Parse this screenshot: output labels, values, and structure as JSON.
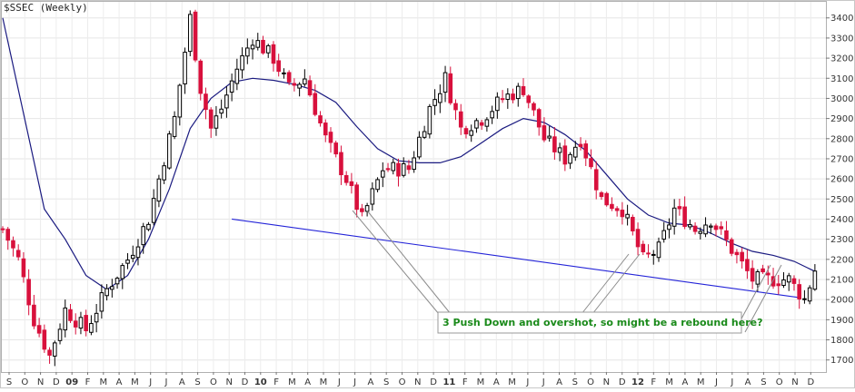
{
  "chart_data": {
    "type": "candlestick",
    "title": "$SSEC (Weekly)",
    "ylim": [
      1640,
      3480
    ],
    "y_ticks": [
      1700,
      1800,
      1900,
      2000,
      2100,
      2200,
      2300,
      2400,
      2500,
      2600,
      2700,
      2800,
      2900,
      3000,
      3100,
      3200,
      3300,
      3400
    ],
    "x_month_labels": [
      "S",
      "O",
      "N",
      "D",
      "09",
      "F",
      "M",
      "A",
      "M",
      "J",
      "J",
      "A",
      "S",
      "O",
      "N",
      "D",
      "10",
      "F",
      "M",
      "A",
      "M",
      "J",
      "J",
      "A",
      "S",
      "O",
      "N",
      "D",
      "11",
      "F",
      "M",
      "A",
      "M",
      "J",
      "J",
      "A",
      "S",
      "O",
      "N",
      "D",
      "12",
      "F",
      "M",
      "A",
      "M",
      "J",
      "J",
      "A",
      "S",
      "O",
      "N",
      "D"
    ],
    "grid": true,
    "up_color": "#000000",
    "down_color": "#d8103c",
    "ma_color": "#1a1a80",
    "trendline_color": "#2424d8",
    "weekly_close_anchors": [
      [
        0,
        2350
      ],
      [
        3,
        2200
      ],
      [
        6,
        1900
      ],
      [
        9,
        1720
      ],
      [
        12,
        1950
      ],
      [
        16,
        1850
      ],
      [
        20,
        2050
      ],
      [
        24,
        2200
      ],
      [
        28,
        2400
      ],
      [
        33,
        2900
      ],
      [
        36,
        3400
      ],
      [
        38,
        3050
      ],
      [
        40,
        2850
      ],
      [
        42,
        2950
      ],
      [
        45,
        3150
      ],
      [
        48,
        3300
      ],
      [
        52,
        3200
      ],
      [
        55,
        3050
      ],
      [
        58,
        3100
      ],
      [
        62,
        2800
      ],
      [
        66,
        2600
      ],
      [
        69,
        2400
      ],
      [
        73,
        2650
      ],
      [
        78,
        2650
      ],
      [
        82,
        2950
      ],
      [
        85,
        3100
      ],
      [
        88,
        2850
      ],
      [
        92,
        2900
      ],
      [
        96,
        3000
      ],
      [
        100,
        3050
      ],
      [
        104,
        2800
      ],
      [
        108,
        2700
      ],
      [
        111,
        2800
      ],
      [
        115,
        2500
      ],
      [
        119,
        2450
      ],
      [
        123,
        2200
      ],
      [
        126,
        2250
      ],
      [
        129,
        2450
      ],
      [
        133,
        2350
      ],
      [
        136,
        2400
      ],
      [
        140,
        2250
      ],
      [
        144,
        2100
      ],
      [
        147,
        2100
      ],
      [
        151,
        2100
      ],
      [
        154,
        2000
      ],
      [
        156,
        2150
      ]
    ],
    "moving_average": [
      [
        0,
        3400
      ],
      [
        8,
        2450
      ],
      [
        12,
        2300
      ],
      [
        16,
        2120
      ],
      [
        20,
        2050
      ],
      [
        24,
        2120
      ],
      [
        28,
        2300
      ],
      [
        32,
        2550
      ],
      [
        36,
        2850
      ],
      [
        40,
        3000
      ],
      [
        44,
        3080
      ],
      [
        48,
        3100
      ],
      [
        52,
        3090
      ],
      [
        56,
        3070
      ],
      [
        60,
        3040
      ],
      [
        64,
        2980
      ],
      [
        68,
        2860
      ],
      [
        72,
        2750
      ],
      [
        76,
        2690
      ],
      [
        80,
        2680
      ],
      [
        84,
        2680
      ],
      [
        88,
        2710
      ],
      [
        92,
        2780
      ],
      [
        96,
        2850
      ],
      [
        100,
        2900
      ],
      [
        104,
        2880
      ],
      [
        108,
        2820
      ],
      [
        112,
        2740
      ],
      [
        116,
        2620
      ],
      [
        120,
        2500
      ],
      [
        124,
        2420
      ],
      [
        128,
        2380
      ],
      [
        132,
        2370
      ],
      [
        136,
        2330
      ],
      [
        140,
        2280
      ],
      [
        144,
        2240
      ],
      [
        148,
        2220
      ],
      [
        152,
        2190
      ],
      [
        156,
        2140
      ]
    ],
    "trendline": [
      [
        44,
        2400
      ],
      [
        153,
        2010
      ]
    ],
    "annotation": "3 Push Down and overshot, so might be a rebound here?"
  }
}
